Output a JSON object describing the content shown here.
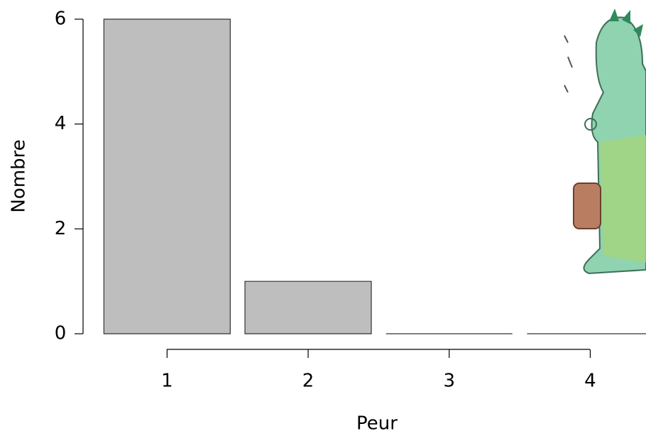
{
  "chart_data": {
    "type": "bar",
    "categories": [
      "1",
      "2",
      "3",
      "4"
    ],
    "values": [
      6,
      1,
      0,
      0
    ],
    "color": "#bebebe",
    "xlabel": "Peur",
    "ylabel": "Nombre",
    "ylim": [
      0,
      6
    ],
    "yticks": [
      0,
      2,
      4,
      6
    ]
  }
}
